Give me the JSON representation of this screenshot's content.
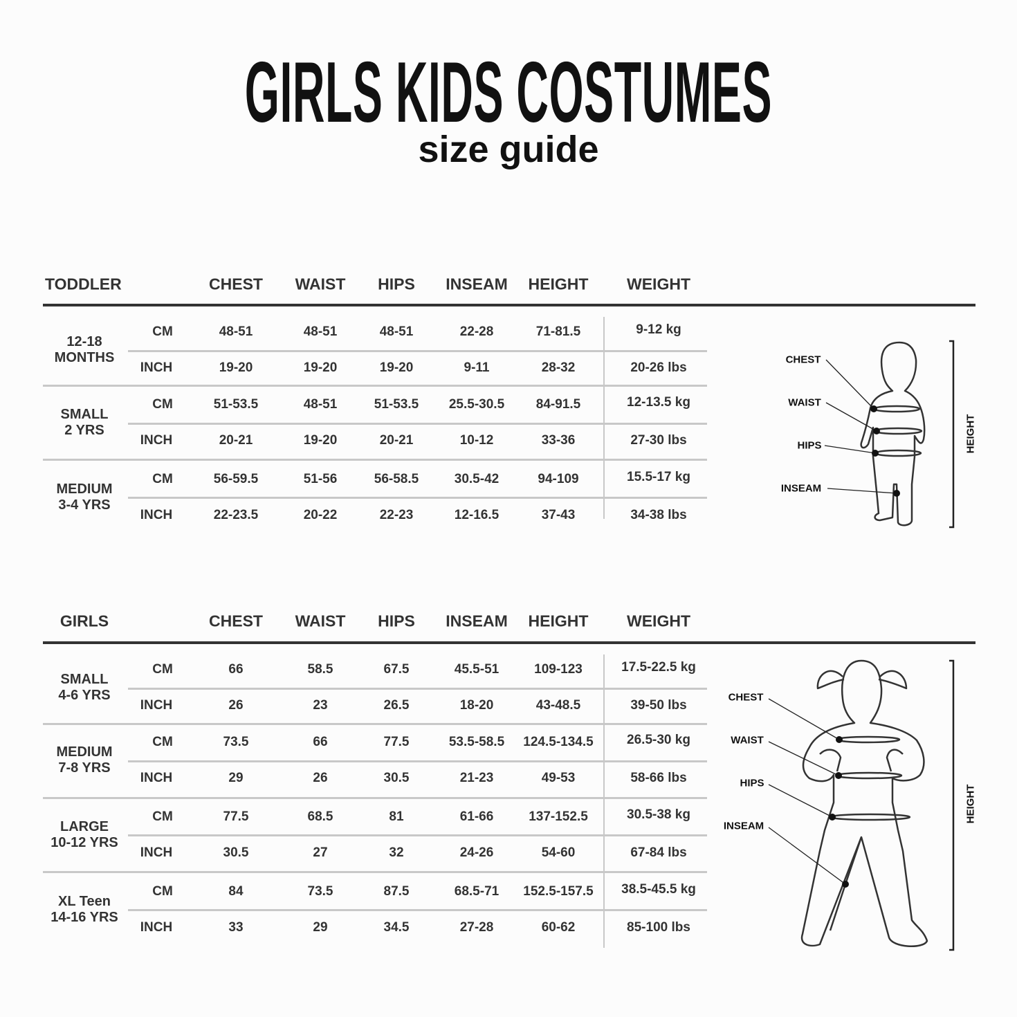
{
  "title": "GIRLS KIDS COSTUMES",
  "subtitle": "size guide",
  "columns": [
    "CHEST",
    "WAIST",
    "HIPS",
    "INSEAM",
    "HEIGHT",
    "WEIGHT"
  ],
  "units": {
    "cm": "CM",
    "inch": "INCH"
  },
  "tables": [
    {
      "heading": "TODDLER",
      "rows": [
        {
          "size": [
            "12-18",
            "MONTHS"
          ],
          "cm": [
            "48-51",
            "48-51",
            "48-51",
            "22-28",
            "71-81.5",
            "9-12 kg"
          ],
          "inch": [
            "19-20",
            "19-20",
            "19-20",
            "9-11",
            "28-32",
            "20-26 lbs"
          ]
        },
        {
          "size": [
            "SMALL",
            "2 YRS"
          ],
          "cm": [
            "51-53.5",
            "48-51",
            "51-53.5",
            "25.5-30.5",
            "84-91.5",
            "12-13.5 kg"
          ],
          "inch": [
            "20-21",
            "19-20",
            "20-21",
            "10-12",
            "33-36",
            "27-30 lbs"
          ]
        },
        {
          "size": [
            "MEDIUM",
            "3-4 YRS"
          ],
          "cm": [
            "56-59.5",
            "51-56",
            "56-58.5",
            "30.5-42",
            "94-109",
            "15.5-17 kg"
          ],
          "inch": [
            "22-23.5",
            "20-22",
            "22-23",
            "12-16.5",
            "37-43",
            "34-38 lbs"
          ]
        }
      ]
    },
    {
      "heading": "GIRLS",
      "rows": [
        {
          "size": [
            "SMALL",
            "4-6 YRS"
          ],
          "cm": [
            "66",
            "58.5",
            "67.5",
            "45.5-51",
            "109-123",
            "17.5-22.5 kg"
          ],
          "inch": [
            "26",
            "23",
            "26.5",
            "18-20",
            "43-48.5",
            "39-50 lbs"
          ]
        },
        {
          "size": [
            "MEDIUM",
            "7-8 YRS"
          ],
          "cm": [
            "73.5",
            "66",
            "77.5",
            "53.5-58.5",
            "124.5-134.5",
            "26.5-30 kg"
          ],
          "inch": [
            "29",
            "26",
            "30.5",
            "21-23",
            "49-53",
            "58-66 lbs"
          ]
        },
        {
          "size": [
            "LARGE",
            "10-12 YRS"
          ],
          "cm": [
            "77.5",
            "68.5",
            "81",
            "61-66",
            "137-152.5",
            "30.5-38 kg"
          ],
          "inch": [
            "30.5",
            "27",
            "32",
            "24-26",
            "54-60",
            "67-84 lbs"
          ]
        },
        {
          "size": [
            "XL Teen",
            "14-16 YRS"
          ],
          "cm": [
            "84",
            "73.5",
            "87.5",
            "68.5-71",
            "152.5-157.5",
            "38.5-45.5 kg"
          ],
          "inch": [
            "33",
            "29",
            "34.5",
            "27-28",
            "60-62",
            "85-100 lbs"
          ]
        }
      ]
    }
  ],
  "figure_labels": {
    "chest": "CHEST",
    "waist": "WAIST",
    "hips": "HIPS",
    "inseam": "INSEAM",
    "height": "HEIGHT"
  },
  "colors": {
    "text": "#2e2e2e",
    "rule": "#333333",
    "divider": "#c8c8c8",
    "background": "#fcfcfc"
  }
}
